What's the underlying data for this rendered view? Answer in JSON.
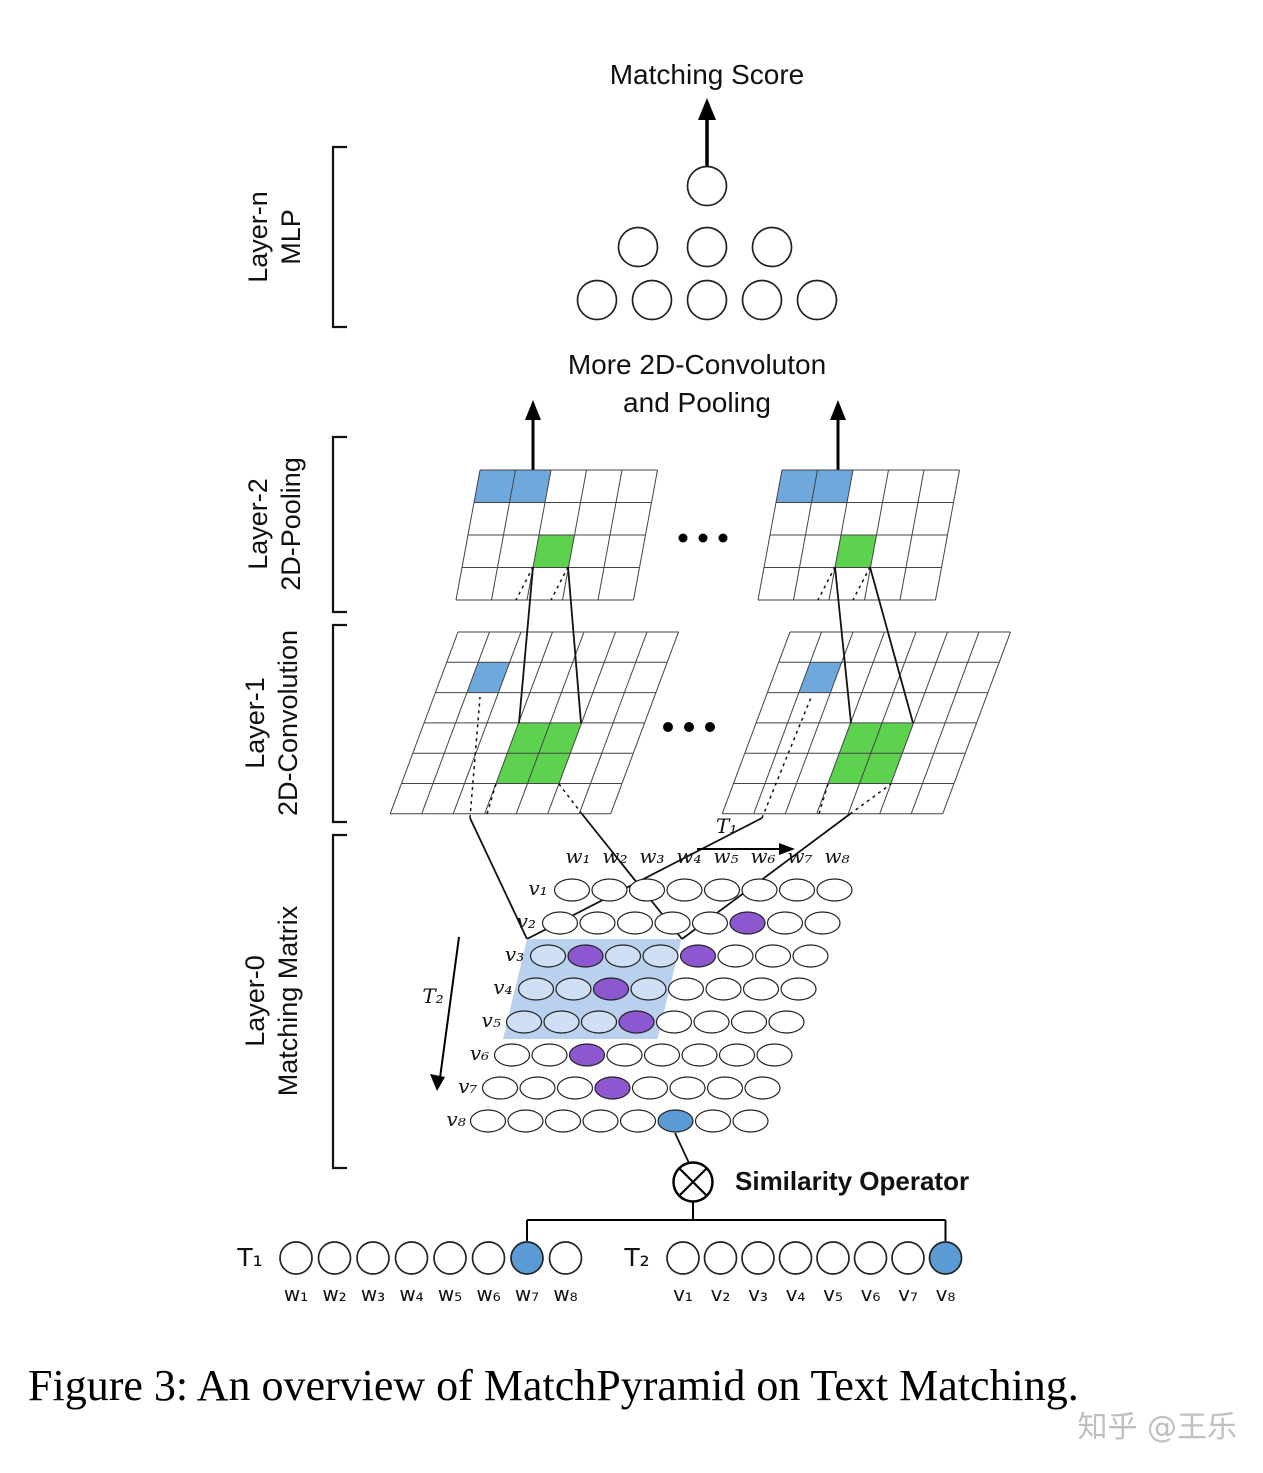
{
  "texts": {
    "matching_score": "Matching Score",
    "more_line1": "More 2D-Convoluton",
    "more_line2": "and Pooling",
    "similarity": "Similarity Operator",
    "caption": "Figure 3: An overview of MatchPyramid on Text Matching.",
    "watermark": "知乎 @王乐"
  },
  "layers": [
    {
      "name": "Layer-n",
      "desc": "MLP"
    },
    {
      "name": "Layer-2",
      "desc": "2D-Pooling"
    },
    {
      "name": "Layer-1",
      "desc": "2D-Convolution"
    },
    {
      "name": "Layer-0",
      "desc": "Matching Matrix"
    }
  ],
  "matrix": {
    "t1_label": "T₁",
    "t2_label": "T₂",
    "col_labels": [
      "w₁",
      "w₂",
      "w₃",
      "w₄",
      "w₅",
      "w₆",
      "w₇",
      "w₈"
    ],
    "row_labels": [
      "v₁",
      "v₂",
      "v₃",
      "v₄",
      "v₅",
      "v₆",
      "v₇",
      "v₈"
    ],
    "purple_cells": [
      [
        2,
        6
      ],
      [
        3,
        2
      ],
      [
        3,
        5
      ],
      [
        4,
        3
      ],
      [
        5,
        4
      ],
      [
        6,
        3
      ],
      [
        7,
        4
      ]
    ],
    "blue_cells": [
      [
        8,
        6
      ]
    ],
    "region": {
      "row_start": 3,
      "row_end": 5,
      "col_start": 1,
      "col_end": 4
    }
  },
  "sequences": {
    "t1": {
      "label": "T₁",
      "items": [
        "w₁",
        "w₂",
        "w₃",
        "w₄",
        "w₅",
        "w₆",
        "w₇",
        "w₈"
      ],
      "highlight_index": 6
    },
    "t2": {
      "label": "T₂",
      "items": [
        "v₁",
        "v₂",
        "v₃",
        "v₄",
        "v₅",
        "v₆",
        "v₇",
        "v₈"
      ],
      "highlight_index": 7
    }
  },
  "colors": {
    "cell_blue": "#6fa8dc",
    "cell_green": "#5dd24f",
    "purple": "#8c57cf",
    "region_fill": "#b9d0ef",
    "region_cell": "#cfdff5",
    "token_blue": "#5b9bd5"
  }
}
